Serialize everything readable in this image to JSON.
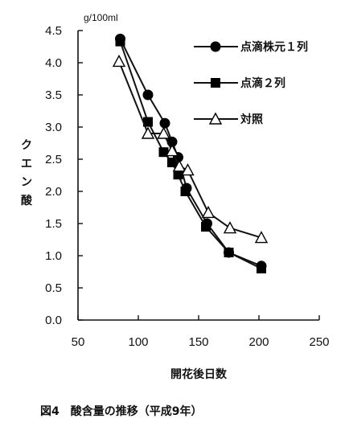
{
  "figure": {
    "caption": "図4　酸含量の推移（平成9年）"
  },
  "chart_data": {
    "type": "line",
    "xlabel": "開花後日数",
    "ylabel": "クエン酸",
    "ylabel_unit": "g/100ml",
    "xlim": [
      50,
      250
    ],
    "ylim": [
      0.0,
      4.5
    ],
    "xticks": [
      50,
      100,
      150,
      200,
      250
    ],
    "yticks": [
      "0.0",
      "0.5",
      "1.0",
      "1.5",
      "2.0",
      "2.5",
      "3.0",
      "3.5",
      "4.0",
      "4.5"
    ],
    "legend_position": "top-right",
    "series": [
      {
        "name": "点滴株元１列",
        "marker": "filled-circle",
        "x": [
          85,
          108,
          122,
          128,
          133,
          140,
          157,
          175,
          202
        ],
        "y": [
          4.37,
          3.5,
          3.06,
          2.77,
          2.53,
          2.05,
          1.5,
          1.05,
          0.84
        ]
      },
      {
        "name": "点滴２列",
        "marker": "filled-square",
        "x": [
          85,
          108,
          121,
          128,
          133,
          139,
          156,
          175,
          202
        ],
        "y": [
          4.33,
          3.08,
          2.61,
          2.45,
          2.26,
          2.0,
          1.45,
          1.05,
          0.8
        ]
      },
      {
        "name": "対照",
        "marker": "open-triangle",
        "x": [
          84,
          108,
          121,
          128,
          134,
          141,
          158,
          176,
          202
        ],
        "y": [
          4.02,
          2.9,
          2.9,
          2.63,
          2.39,
          2.33,
          1.67,
          1.43,
          1.28
        ]
      }
    ]
  }
}
